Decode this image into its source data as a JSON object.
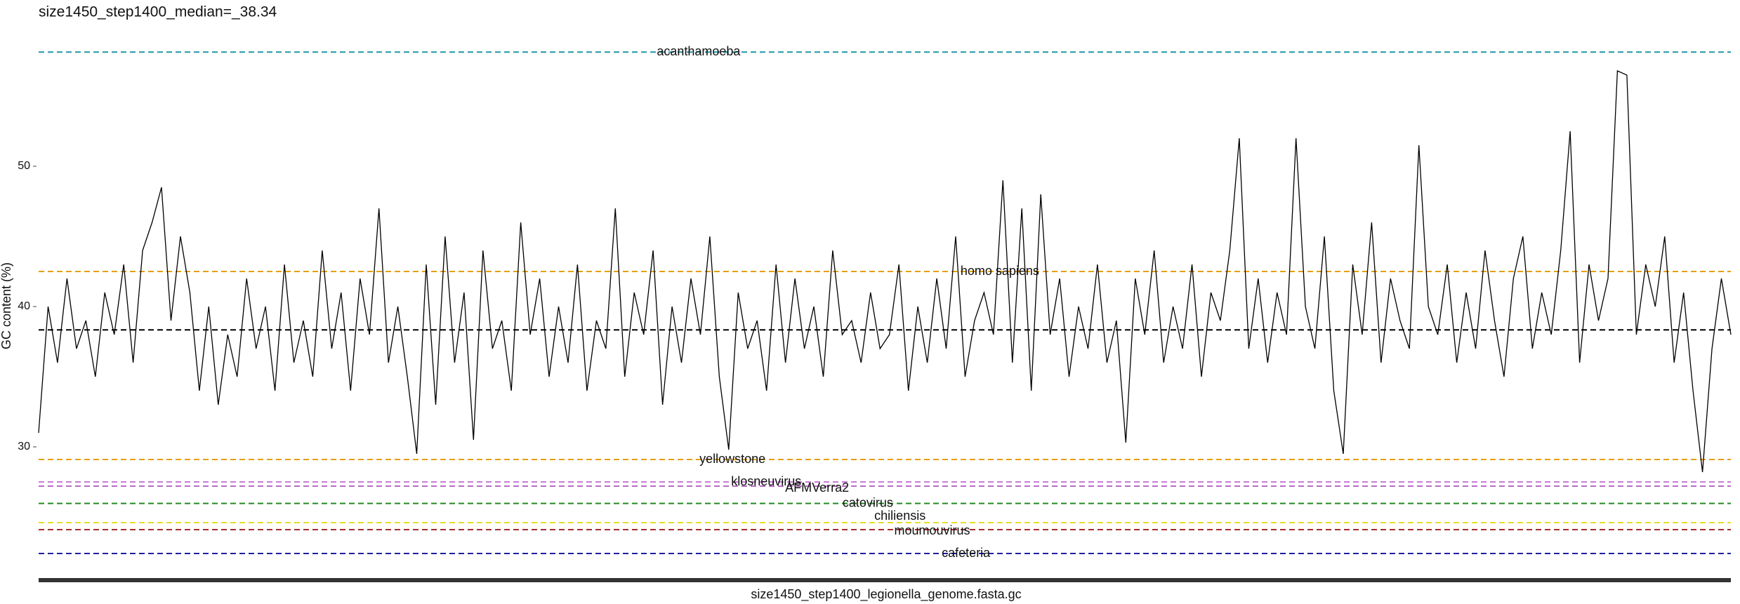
{
  "chart_data": {
    "type": "line",
    "title": "size1450_step1400_median=_38.34",
    "x_label": "size1450_step1400_legionella_genome.fasta.gc",
    "y_label": "GC content (%)",
    "ylim": [
      20.5,
      59
    ],
    "yticks": [
      30,
      40,
      50
    ],
    "grid": false,
    "series": [
      {
        "color": "#000000",
        "values": [
          31,
          40,
          36,
          42,
          37,
          39,
          35,
          41,
          38,
          43,
          36,
          44,
          46,
          48.5,
          39,
          45,
          41,
          34,
          40,
          33,
          38,
          35,
          42,
          37,
          40,
          34,
          43,
          36,
          39,
          35,
          44,
          37,
          41,
          34,
          42,
          38,
          47,
          36,
          40,
          35,
          29.5,
          43,
          33,
          45,
          36,
          41,
          30.5,
          44,
          37,
          39,
          34,
          46,
          38,
          42,
          35,
          40,
          36,
          43,
          34,
          39,
          37,
          47,
          35,
          41,
          38,
          44,
          33,
          40,
          36,
          42,
          38,
          45,
          35,
          29.8,
          41,
          37,
          39,
          34,
          43,
          36,
          42,
          37,
          40,
          35,
          44,
          38,
          39,
          36,
          41,
          37,
          38,
          43,
          34,
          40,
          36,
          42,
          37,
          45,
          35,
          39,
          41,
          38,
          49,
          36,
          47,
          34,
          48,
          38,
          42,
          35,
          40,
          37,
          43,
          36,
          39,
          30.3,
          42,
          38,
          44,
          36,
          40,
          37,
          43,
          35,
          41,
          39,
          44,
          52,
          37,
          42,
          36,
          41,
          38,
          52,
          40,
          37,
          45,
          34,
          29.5,
          43,
          38,
          46,
          36,
          42,
          39,
          37,
          51.5,
          40,
          38,
          43,
          36,
          41,
          37,
          44,
          39,
          35,
          42,
          45,
          37,
          41,
          38,
          44,
          52.5,
          36,
          43,
          39,
          42,
          56.8,
          56.5,
          38,
          43,
          40,
          45,
          36,
          41,
          34,
          28.2,
          37,
          42,
          38
        ]
      }
    ],
    "hlines": [
      {
        "name": "acanthamoeba",
        "value": 58.14,
        "color": "#1f97a8"
      },
      {
        "name": "homo sapiens",
        "value": 42.5,
        "color": "#e69f00"
      },
      {
        "value": 38.34,
        "color": "#000000"
      },
      {
        "name": "yellowstone",
        "value": 29.1,
        "color": "#e69f00"
      },
      {
        "name": "klosneuvirus",
        "value": 27.5,
        "color": "#c77cd6"
      },
      {
        "name": "AFMVerra2",
        "value": 27.2,
        "color": "#b86bc2"
      },
      {
        "name": "catovirus",
        "value": 25.97,
        "color": "#228b22"
      },
      {
        "name": "chiliensis",
        "value": 24.6,
        "color": "#e8dc2a"
      },
      {
        "name": "moumouvirus",
        "value": 24.1,
        "color": "#a52a2a"
      },
      {
        "name": "cafeteria",
        "value": 22.4,
        "color": "#1f1fa0"
      }
    ]
  }
}
